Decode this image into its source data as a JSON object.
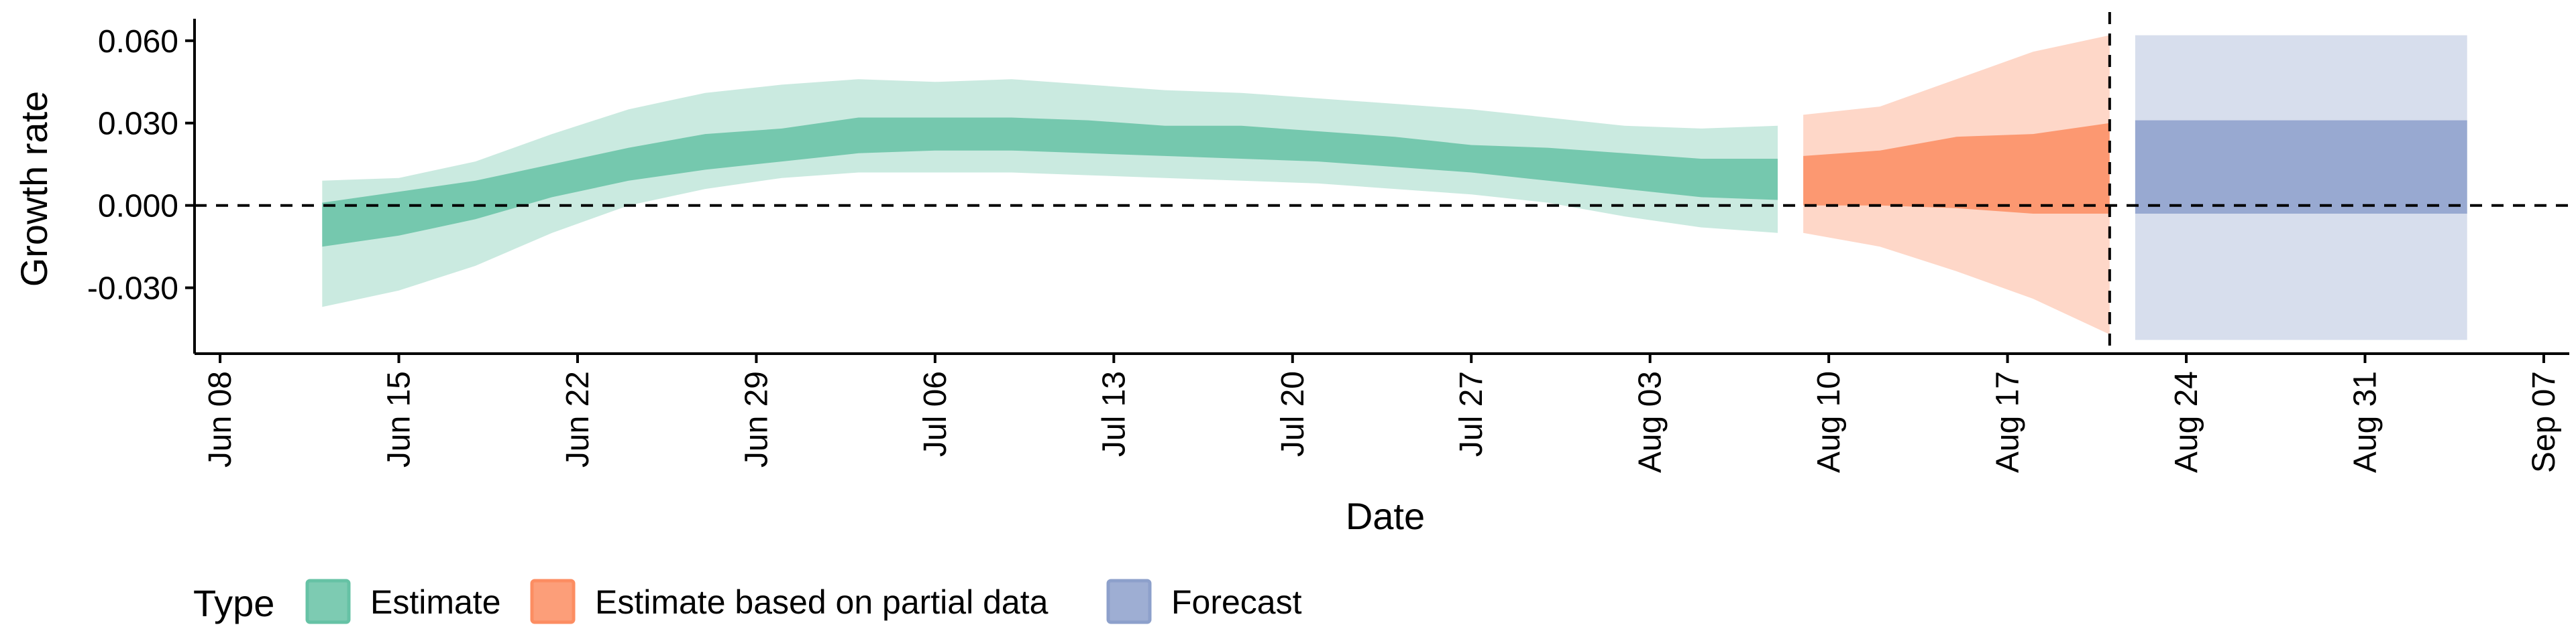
{
  "chart_data": {
    "type": "area",
    "title": "",
    "xlabel": "Date",
    "ylabel": "Growth rate",
    "xlim": [
      "2020-06-07",
      "2020-09-08"
    ],
    "ylim": [
      -0.054,
      0.068
    ],
    "x_ticks": [
      "Jun 08",
      "Jun 15",
      "Jun 22",
      "Jun 29",
      "Jul 06",
      "Jul 13",
      "Jul 20",
      "Jul 27",
      "Aug 03",
      "Aug 10",
      "Aug 17",
      "Aug 24",
      "Aug 31",
      "Sep 07"
    ],
    "x_tick_dates": [
      "2020-06-08",
      "2020-06-15",
      "2020-06-22",
      "2020-06-29",
      "2020-07-06",
      "2020-07-13",
      "2020-07-20",
      "2020-07-27",
      "2020-08-03",
      "2020-08-10",
      "2020-08-17",
      "2020-08-24",
      "2020-08-31",
      "2020-09-07"
    ],
    "y_ticks": [
      0.06,
      0.03,
      0.0,
      -0.03
    ],
    "y_tick_labels": [
      "0.060",
      "0.030",
      "0.000",
      "-0.030"
    ],
    "reference_lines": {
      "horizontal_y": 0.0,
      "vertical_date": "2020-08-21"
    },
    "grid": false,
    "legend": {
      "title": "Type",
      "position": "bottom"
    },
    "series": [
      {
        "name": "Estimate",
        "color": "#66c2a5",
        "points": [
          {
            "date": "2020-06-12",
            "outer_lo": -0.037,
            "inner_lo": -0.015,
            "inner_hi": 0.001,
            "outer_hi": 0.009
          },
          {
            "date": "2020-06-15",
            "outer_lo": -0.031,
            "inner_lo": -0.011,
            "inner_hi": 0.005,
            "outer_hi": 0.01
          },
          {
            "date": "2020-06-18",
            "outer_lo": -0.022,
            "inner_lo": -0.005,
            "inner_hi": 0.009,
            "outer_hi": 0.016
          },
          {
            "date": "2020-06-21",
            "outer_lo": -0.01,
            "inner_lo": 0.003,
            "inner_hi": 0.015,
            "outer_hi": 0.026
          },
          {
            "date": "2020-06-24",
            "outer_lo": 0.0,
            "inner_lo": 0.009,
            "inner_hi": 0.021,
            "outer_hi": 0.035
          },
          {
            "date": "2020-06-27",
            "outer_lo": 0.006,
            "inner_lo": 0.013,
            "inner_hi": 0.026,
            "outer_hi": 0.041
          },
          {
            "date": "2020-06-30",
            "outer_lo": 0.01,
            "inner_lo": 0.016,
            "inner_hi": 0.028,
            "outer_hi": 0.044
          },
          {
            "date": "2020-07-03",
            "outer_lo": 0.012,
            "inner_lo": 0.019,
            "inner_hi": 0.032,
            "outer_hi": 0.046
          },
          {
            "date": "2020-07-06",
            "outer_lo": 0.012,
            "inner_lo": 0.02,
            "inner_hi": 0.032,
            "outer_hi": 0.045
          },
          {
            "date": "2020-07-09",
            "outer_lo": 0.012,
            "inner_lo": 0.02,
            "inner_hi": 0.032,
            "outer_hi": 0.046
          },
          {
            "date": "2020-07-12",
            "outer_lo": 0.011,
            "inner_lo": 0.019,
            "inner_hi": 0.031,
            "outer_hi": 0.044
          },
          {
            "date": "2020-07-15",
            "outer_lo": 0.01,
            "inner_lo": 0.018,
            "inner_hi": 0.029,
            "outer_hi": 0.042
          },
          {
            "date": "2020-07-18",
            "outer_lo": 0.009,
            "inner_lo": 0.017,
            "inner_hi": 0.029,
            "outer_hi": 0.041
          },
          {
            "date": "2020-07-21",
            "outer_lo": 0.008,
            "inner_lo": 0.016,
            "inner_hi": 0.027,
            "outer_hi": 0.039
          },
          {
            "date": "2020-07-24",
            "outer_lo": 0.006,
            "inner_lo": 0.014,
            "inner_hi": 0.025,
            "outer_hi": 0.037
          },
          {
            "date": "2020-07-27",
            "outer_lo": 0.004,
            "inner_lo": 0.012,
            "inner_hi": 0.022,
            "outer_hi": 0.035
          },
          {
            "date": "2020-07-30",
            "outer_lo": 0.001,
            "inner_lo": 0.009,
            "inner_hi": 0.021,
            "outer_hi": 0.032
          },
          {
            "date": "2020-08-02",
            "outer_lo": -0.004,
            "inner_lo": 0.006,
            "inner_hi": 0.019,
            "outer_hi": 0.029
          },
          {
            "date": "2020-08-05",
            "outer_lo": -0.008,
            "inner_lo": 0.003,
            "inner_hi": 0.017,
            "outer_hi": 0.028
          },
          {
            "date": "2020-08-08",
            "outer_lo": -0.01,
            "inner_lo": 0.002,
            "inner_hi": 0.017,
            "outer_hi": 0.029
          }
        ]
      },
      {
        "name": "Estimate based on partial data",
        "color": "#fc8d62",
        "points": [
          {
            "date": "2020-08-09",
            "outer_lo": -0.01,
            "inner_lo": 0.0,
            "inner_hi": 0.018,
            "outer_hi": 0.033
          },
          {
            "date": "2020-08-12",
            "outer_lo": -0.015,
            "inner_lo": 0.0,
            "inner_hi": 0.02,
            "outer_hi": 0.036
          },
          {
            "date": "2020-08-15",
            "outer_lo": -0.024,
            "inner_lo": -0.001,
            "inner_hi": 0.025,
            "outer_hi": 0.046
          },
          {
            "date": "2020-08-18",
            "outer_lo": -0.034,
            "inner_lo": -0.003,
            "inner_hi": 0.026,
            "outer_hi": 0.056
          },
          {
            "date": "2020-08-21",
            "outer_lo": -0.047,
            "inner_lo": -0.003,
            "inner_hi": 0.03,
            "outer_hi": 0.062
          }
        ]
      },
      {
        "name": "Forecast",
        "color": "#8da0cb",
        "points": [
          {
            "date": "2020-08-22",
            "outer_lo": -0.049,
            "inner_lo": -0.003,
            "inner_hi": 0.031,
            "outer_hi": 0.062
          },
          {
            "date": "2020-09-04",
            "outer_lo": -0.049,
            "inner_lo": -0.003,
            "inner_hi": 0.031,
            "outer_hi": 0.062
          }
        ]
      }
    ]
  }
}
